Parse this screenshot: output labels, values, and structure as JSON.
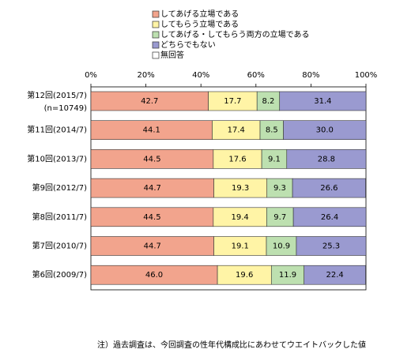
{
  "chart_data": {
    "type": "stacked-bar-horizontal",
    "categories": [
      "第12回(2015/7)",
      "第11回(2014/7)",
      "第10回(2013/7)",
      "第9回(2012/7)",
      "第8回(2011/7)",
      "第7回(2010/7)",
      "第6回(2009/7)"
    ],
    "sample_size_label": "(n=10749)",
    "series": [
      {
        "name": "してあげる立場である",
        "color": "#f2a48d",
        "values": [
          42.7,
          44.1,
          44.5,
          44.7,
          44.5,
          44.7,
          46.0
        ],
        "value_labels": [
          "42.7",
          "44.1",
          "44.5",
          "44.7",
          "44.5",
          "44.7",
          "46.0"
        ]
      },
      {
        "name": "してもらう立場である",
        "color": "#fff4a6",
        "values": [
          17.7,
          17.4,
          17.6,
          19.3,
          19.4,
          19.1,
          19.6
        ],
        "value_labels": [
          "17.7",
          "17.4",
          "17.6",
          "19.3",
          "19.4",
          "19.1",
          "19.6"
        ]
      },
      {
        "name": "してあげる・してもらう両方の立場である",
        "color": "#bde0b0",
        "values": [
          8.2,
          8.5,
          9.1,
          9.3,
          9.7,
          10.9,
          11.9
        ],
        "value_labels": [
          "8.2",
          "8.5",
          "9.1",
          "9.3",
          "9.7",
          "10.9",
          "11.9"
        ]
      },
      {
        "name": "どちらでもない",
        "color": "#9a9ad0",
        "values": [
          31.4,
          30.0,
          28.8,
          26.6,
          26.4,
          25.3,
          22.4
        ],
        "value_labels": [
          "31.4",
          "30.0",
          "28.8",
          "26.6",
          "26.4",
          "25.3",
          "22.4"
        ]
      },
      {
        "name": "無回答",
        "color": "#ffffff",
        "values": [
          0,
          0,
          0,
          0.1,
          0,
          0,
          0.1
        ]
      }
    ],
    "xlim": [
      0,
      100
    ],
    "xticks": [
      {
        "value": 0,
        "label": "0%"
      },
      {
        "value": 20,
        "label": "20%"
      },
      {
        "value": 40,
        "label": "40%"
      },
      {
        "value": 60,
        "label": "60%"
      },
      {
        "value": 80,
        "label": "80%"
      },
      {
        "value": 100,
        "label": "100%"
      }
    ],
    "note": "注）過去調査は、今回調査の性年代構成比にあわせてウエイトバックした値"
  }
}
